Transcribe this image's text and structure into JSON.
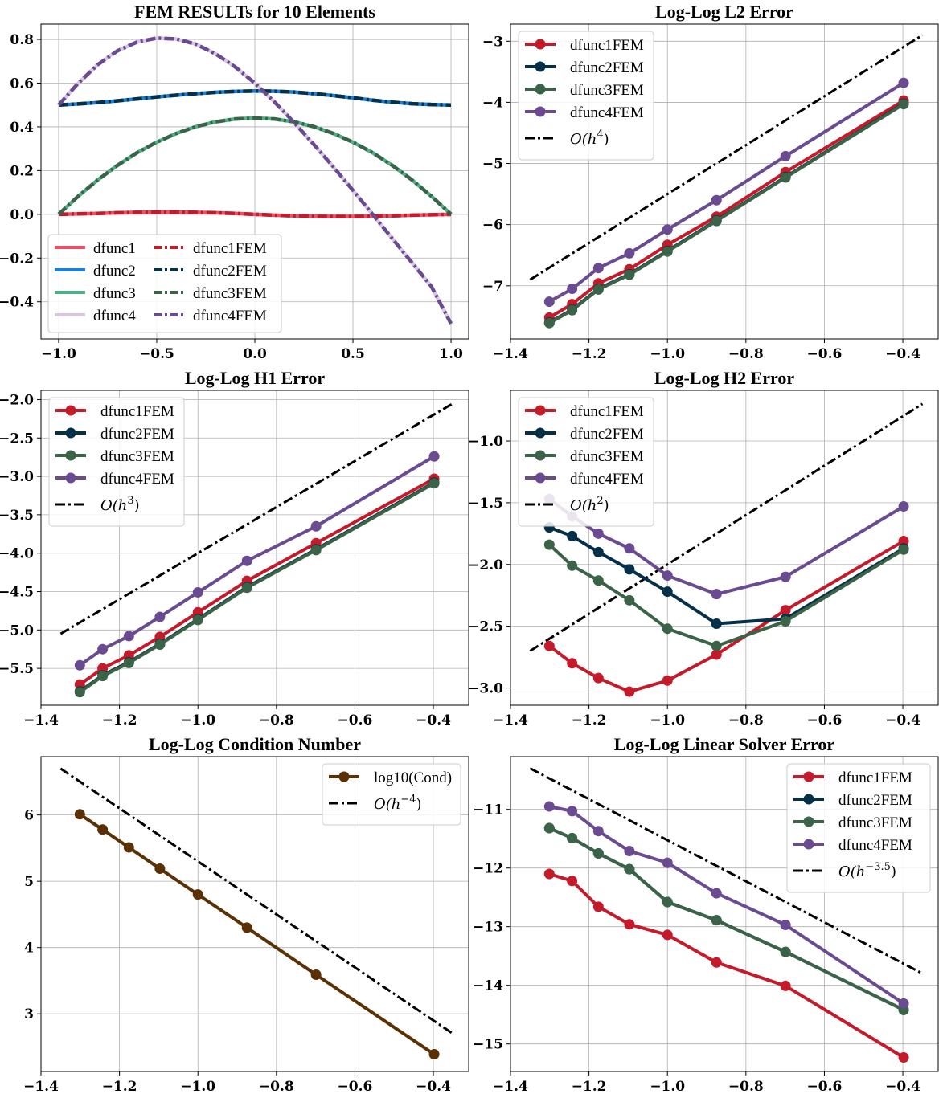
{
  "colors": {
    "dfunc1": "#ec5066",
    "dfunc2": "#1a7fd6",
    "dfunc3": "#4fb088",
    "dfunc4": "#dac6e0",
    "dfunc1FEM": "#c41a2a",
    "dfunc2FEM": "#05304a",
    "dfunc3FEM": "#3a6347",
    "dfunc4FEM": "#6a4a90",
    "cond": "#5a3005",
    "ref": "#000000"
  },
  "chart_data": [
    {
      "id": "fem",
      "type": "line",
      "title": "FEM  RESULTs  for 10 Elements",
      "xlabel": "",
      "ylabel": "",
      "xlim": [
        -1.09,
        1.09
      ],
      "ylim": [
        -0.57,
        0.87
      ],
      "xticks": [
        -1.0,
        -0.5,
        0.0,
        0.5,
        1.0
      ],
      "xtick_labels": [
        "−1.0",
        "−0.5",
        "0.0",
        "0.5",
        "1.0"
      ],
      "yticks": [
        -0.4,
        -0.2,
        0.0,
        0.2,
        0.4,
        0.6,
        0.8
      ],
      "ytick_labels": [
        "−0.4",
        "−0.2",
        "0.0",
        "0.2",
        "0.4",
        "0.6",
        "0.8"
      ],
      "grid": true,
      "legend": "lower-left",
      "legend_ncol": 2,
      "x": [
        -1.0,
        -0.9,
        -0.8,
        -0.7,
        -0.6,
        -0.5,
        -0.4,
        -0.3,
        -0.2,
        -0.1,
        0.0,
        0.1,
        0.2,
        0.3,
        0.4,
        0.5,
        0.6,
        0.7,
        0.8,
        0.9,
        1.0
      ],
      "series": [
        {
          "name": "dfunc1",
          "color_key": "dfunc1",
          "dash": "solid",
          "values": [
            0.0,
            0.002,
            0.004,
            0.007,
            0.009,
            0.01,
            0.01,
            0.009,
            0.007,
            0.004,
            0.0,
            -0.004,
            -0.007,
            -0.009,
            -0.01,
            -0.01,
            -0.009,
            -0.007,
            -0.004,
            -0.002,
            0.0
          ]
        },
        {
          "name": "dfunc2",
          "color_key": "dfunc2",
          "dash": "solid",
          "values": [
            0.5,
            0.505,
            0.511,
            0.519,
            0.528,
            0.537,
            0.545,
            0.552,
            0.558,
            0.562,
            0.564,
            0.563,
            0.559,
            0.552,
            0.543,
            0.533,
            0.522,
            0.513,
            0.506,
            0.502,
            0.5
          ]
        },
        {
          "name": "dfunc3",
          "color_key": "dfunc3",
          "dash": "solid",
          "values": [
            0.0,
            0.083,
            0.158,
            0.224,
            0.282,
            0.33,
            0.37,
            0.401,
            0.423,
            0.436,
            0.44,
            0.436,
            0.423,
            0.401,
            0.37,
            0.33,
            0.282,
            0.224,
            0.158,
            0.083,
            0.0
          ]
        },
        {
          "name": "dfunc4",
          "color_key": "dfunc4",
          "dash": "solid",
          "values": [
            0.5,
            0.6,
            0.685,
            0.748,
            0.788,
            0.806,
            0.802,
            0.778,
            0.734,
            0.674,
            0.6,
            0.514,
            0.42,
            0.32,
            0.217,
            0.11,
            0.0,
            -0.11,
            -0.22,
            -0.33,
            -0.5
          ]
        },
        {
          "name": "dfunc1FEM",
          "color_key": "dfunc1FEM",
          "dash": "dash",
          "values": [
            0.0,
            0.002,
            0.004,
            0.007,
            0.009,
            0.01,
            0.01,
            0.009,
            0.007,
            0.004,
            0.0,
            -0.004,
            -0.007,
            -0.009,
            -0.01,
            -0.01,
            -0.009,
            -0.007,
            -0.004,
            -0.002,
            0.0
          ]
        },
        {
          "name": "dfunc2FEM",
          "color_key": "dfunc2FEM",
          "dash": "dash",
          "values": [
            0.5,
            0.505,
            0.511,
            0.519,
            0.528,
            0.537,
            0.545,
            0.552,
            0.558,
            0.562,
            0.564,
            0.563,
            0.559,
            0.552,
            0.543,
            0.533,
            0.522,
            0.513,
            0.506,
            0.502,
            0.5
          ]
        },
        {
          "name": "dfunc3FEM",
          "color_key": "dfunc3FEM",
          "dash": "dash",
          "values": [
            0.0,
            0.083,
            0.158,
            0.224,
            0.282,
            0.33,
            0.37,
            0.401,
            0.423,
            0.436,
            0.44,
            0.436,
            0.423,
            0.401,
            0.37,
            0.33,
            0.282,
            0.224,
            0.158,
            0.083,
            0.0
          ]
        },
        {
          "name": "dfunc4FEM",
          "color_key": "dfunc4FEM",
          "dash": "dash",
          "values": [
            0.5,
            0.6,
            0.685,
            0.748,
            0.788,
            0.806,
            0.802,
            0.778,
            0.734,
            0.674,
            0.6,
            0.514,
            0.42,
            0.32,
            0.217,
            0.11,
            0.0,
            -0.11,
            -0.22,
            -0.33,
            -0.5
          ]
        }
      ]
    },
    {
      "id": "l2",
      "type": "line",
      "title": "Log-Log L2 Error",
      "xlabel": "",
      "ylabel": "",
      "xlim": [
        -1.4,
        -0.31
      ],
      "ylim": [
        -7.87,
        -2.72
      ],
      "xticks": [
        -1.4,
        -1.2,
        -1.0,
        -0.8,
        -0.6,
        -0.4
      ],
      "xtick_labels": [
        "−1.4",
        "−1.2",
        "−1.0",
        "−0.8",
        "−0.6",
        "−0.4"
      ],
      "yticks": [
        -7,
        -6,
        -5,
        -4,
        -3
      ],
      "ytick_labels": [
        "−7",
        "−6",
        "−5",
        "−4",
        "−3"
      ],
      "grid": true,
      "legend": "top-left",
      "x": [
        -1.301,
        -1.243,
        -1.176,
        -1.097,
        -1.0,
        -0.875,
        -0.699,
        -0.398
      ],
      "series": [
        {
          "name": "dfunc1FEM",
          "color_key": "dfunc1FEM",
          "values": [
            -7.52,
            -7.3,
            -6.96,
            -6.73,
            -6.33,
            -5.87,
            -5.14,
            -3.97
          ]
        },
        {
          "name": "dfunc2FEM",
          "color_key": "dfunc2FEM",
          "values": [
            -7.6,
            -7.39,
            -7.05,
            -6.81,
            -6.43,
            -5.93,
            -5.22,
            -4.02
          ]
        },
        {
          "name": "dfunc3FEM",
          "color_key": "dfunc3FEM",
          "values": [
            -7.61,
            -7.4,
            -7.06,
            -6.82,
            -6.44,
            -5.94,
            -5.23,
            -4.03
          ]
        },
        {
          "name": "dfunc4FEM",
          "color_key": "dfunc4FEM",
          "values": [
            -7.26,
            -7.05,
            -6.71,
            -6.47,
            -6.08,
            -5.6,
            -4.88,
            -3.68
          ]
        }
      ],
      "reference": {
        "label_base": "O(h",
        "label_exp": "4",
        "label_close": ")",
        "x": [
          -1.35,
          -0.35
        ],
        "y": [
          -6.9,
          -2.9
        ]
      }
    },
    {
      "id": "h1",
      "type": "line",
      "title": "Log-Log H1 Error",
      "xlabel": "",
      "ylabel": "",
      "xlim": [
        -1.4,
        -0.31
      ],
      "ylim": [
        -5.98,
        -1.88
      ],
      "xticks": [
        -1.4,
        -1.2,
        -1.0,
        -0.8,
        -0.6,
        -0.4
      ],
      "xtick_labels": [
        "−1.4",
        "−1.2",
        "−1.0",
        "−0.8",
        "−0.6",
        "−0.4"
      ],
      "yticks": [
        -5.5,
        -5.0,
        -4.5,
        -4.0,
        -3.5,
        -3.0,
        -2.5,
        -2.0
      ],
      "ytick_labels": [
        "−5.5",
        "−5.0",
        "−4.5",
        "−4.0",
        "−3.5",
        "−3.0",
        "−2.5",
        "−2.0"
      ],
      "grid": true,
      "legend": "top-left",
      "x": [
        -1.301,
        -1.243,
        -1.176,
        -1.097,
        -1.0,
        -0.875,
        -0.699,
        -0.398
      ],
      "series": [
        {
          "name": "dfunc1FEM",
          "color_key": "dfunc1FEM",
          "values": [
            -5.71,
            -5.5,
            -5.33,
            -5.09,
            -4.77,
            -4.36,
            -3.87,
            -3.03
          ]
        },
        {
          "name": "dfunc2FEM",
          "color_key": "dfunc2FEM",
          "values": [
            -5.8,
            -5.59,
            -5.42,
            -5.18,
            -4.86,
            -4.44,
            -3.95,
            -3.08
          ]
        },
        {
          "name": "dfunc3FEM",
          "color_key": "dfunc3FEM",
          "values": [
            -5.81,
            -5.6,
            -5.43,
            -5.19,
            -4.87,
            -4.45,
            -3.96,
            -3.09
          ]
        },
        {
          "name": "dfunc4FEM",
          "color_key": "dfunc4FEM",
          "values": [
            -5.46,
            -5.25,
            -5.08,
            -4.83,
            -4.51,
            -4.1,
            -3.65,
            -2.74
          ]
        }
      ],
      "reference": {
        "label_base": "O(h",
        "label_exp": "3",
        "label_close": ")",
        "x": [
          -1.35,
          -0.35
        ],
        "y": [
          -5.05,
          -2.05
        ]
      }
    },
    {
      "id": "h2",
      "type": "line",
      "title": "Log-Log H2 Error",
      "xlabel": "",
      "ylabel": "",
      "xlim": [
        -1.4,
        -0.31
      ],
      "ylim": [
        -3.14,
        -0.59
      ],
      "xticks": [
        -1.4,
        -1.2,
        -1.0,
        -0.8,
        -0.6,
        -0.4
      ],
      "xtick_labels": [
        "−1.4",
        "−1.2",
        "−1.0",
        "−0.8",
        "−0.6",
        "−0.4"
      ],
      "yticks": [
        -3.0,
        -2.5,
        -2.0,
        -1.5,
        -1.0
      ],
      "ytick_labels": [
        "−3.0",
        "−2.5",
        "−2.0",
        "−1.5",
        "−1.0"
      ],
      "grid": true,
      "legend": "top-left",
      "x": [
        -1.301,
        -1.243,
        -1.176,
        -1.097,
        -1.0,
        -0.875,
        -0.699,
        -0.398
      ],
      "series": [
        {
          "name": "dfunc1FEM",
          "color_key": "dfunc1FEM",
          "values": [
            -2.66,
            -2.8,
            -2.92,
            -3.03,
            -2.94,
            -2.73,
            -2.37,
            -1.81
          ]
        },
        {
          "name": "dfunc2FEM",
          "color_key": "dfunc2FEM",
          "values": [
            -1.7,
            -1.77,
            -1.9,
            -2.04,
            -2.22,
            -2.48,
            -2.44,
            -1.87
          ]
        },
        {
          "name": "dfunc3FEM",
          "color_key": "dfunc3FEM",
          "values": [
            -1.84,
            -2.01,
            -2.13,
            -2.29,
            -2.52,
            -2.66,
            -2.46,
            -1.88
          ]
        },
        {
          "name": "dfunc4FEM",
          "color_key": "dfunc4FEM",
          "values": [
            -1.47,
            -1.61,
            -1.75,
            -1.87,
            -2.09,
            -2.24,
            -2.1,
            -1.53
          ]
        }
      ],
      "reference": {
        "label_base": "O(h",
        "label_exp": "2",
        "label_close": ")",
        "x": [
          -1.35,
          -0.35
        ],
        "y": [
          -2.7,
          -0.7
        ]
      }
    },
    {
      "id": "cond",
      "type": "line",
      "title": "Log-Log Condition Number",
      "xlabel": "",
      "ylabel": "",
      "xlim": [
        -1.4,
        -0.31
      ],
      "ylim": [
        2.13,
        6.88
      ],
      "xticks": [
        -1.4,
        -1.2,
        -1.0,
        -0.8,
        -0.6,
        -0.4
      ],
      "xtick_labels": [
        "−1.4",
        "−1.2",
        "−1.0",
        "−0.8",
        "−0.6",
        "−0.4"
      ],
      "yticks": [
        3,
        4,
        5,
        6
      ],
      "ytick_labels": [
        "3",
        "4",
        "5",
        "6"
      ],
      "grid": true,
      "legend": "top-right",
      "x": [
        -1.301,
        -1.243,
        -1.176,
        -1.097,
        -1.0,
        -0.875,
        -0.699,
        -0.398
      ],
      "series": [
        {
          "name": "log10(Cond)",
          "color_key": "cond",
          "values": [
            6.01,
            5.78,
            5.51,
            5.19,
            4.8,
            4.3,
            3.59,
            2.39
          ]
        }
      ],
      "reference": {
        "label_base": "O(h",
        "label_exp": "−4",
        "label_close": ")",
        "x": [
          -1.35,
          -0.35
        ],
        "y": [
          6.7,
          2.7
        ]
      }
    },
    {
      "id": "solver",
      "type": "line",
      "title": "Log-Log Linear Solver Error",
      "xlabel": "",
      "ylabel": "",
      "xlim": [
        -1.4,
        -0.31
      ],
      "ylim": [
        -15.47,
        -10.1
      ],
      "xticks": [
        -1.4,
        -1.2,
        -1.0,
        -0.8,
        -0.6,
        -0.4
      ],
      "xtick_labels": [
        "−1.4",
        "−1.2",
        "−1.0",
        "−0.8",
        "−0.6",
        "−0.4"
      ],
      "yticks": [
        -15,
        -14,
        -13,
        -12,
        -11
      ],
      "ytick_labels": [
        "−15",
        "−14",
        "−13",
        "−12",
        "−11"
      ],
      "grid": true,
      "legend": "top-right",
      "x": [
        -1.301,
        -1.243,
        -1.176,
        -1.097,
        -1.0,
        -0.875,
        -0.699,
        -0.398
      ],
      "series": [
        {
          "name": "dfunc1FEM",
          "color_key": "dfunc1FEM",
          "values": [
            -12.1,
            -12.22,
            -12.66,
            -12.96,
            -13.14,
            -13.61,
            -14.01,
            -15.23
          ]
        },
        {
          "name": "dfunc2FEM",
          "color_key": "dfunc2FEM",
          "values": [
            -11.32,
            -11.49,
            -11.75,
            -12.02,
            -12.58,
            -12.89,
            -13.43,
            -14.42
          ]
        },
        {
          "name": "dfunc3FEM",
          "color_key": "dfunc3FEM",
          "values": [
            -11.32,
            -11.49,
            -11.75,
            -12.02,
            -12.58,
            -12.89,
            -13.43,
            -14.42
          ]
        },
        {
          "name": "dfunc4FEM",
          "color_key": "dfunc4FEM",
          "values": [
            -10.95,
            -11.03,
            -11.37,
            -11.71,
            -11.91,
            -12.43,
            -12.97,
            -14.31
          ]
        }
      ],
      "reference": {
        "label_base": "O(h",
        "label_exp": "−3.5",
        "label_close": ")",
        "x": [
          -1.35,
          -0.35
        ],
        "y": [
          -10.3,
          -13.8
        ]
      }
    }
  ]
}
